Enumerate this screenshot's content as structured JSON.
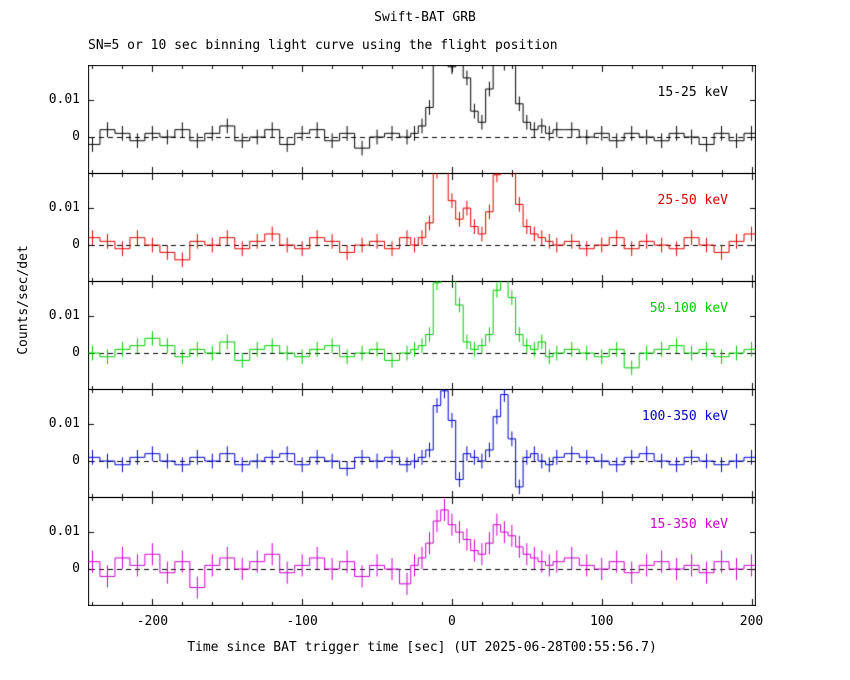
{
  "chart_data": {
    "type": "line",
    "style": "step-histogram-with-error-bars",
    "title": "Swift-BAT GRB",
    "subtitle": "SN=5 or 10 sec binning light curve using the flight position",
    "xlabel": "Time since BAT trigger time [sec] (UT 2025-06-28T00:55:56.7)",
    "ylabel": "Counts/sec/det",
    "xlim": [
      -243,
      203
    ],
    "ylim": [
      -0.01,
      0.0195
    ],
    "xticks": [
      -200,
      -100,
      0,
      100,
      200
    ],
    "xtick_labels": [
      "-200",
      "-100",
      "0",
      "100",
      "200"
    ],
    "xtick_minor_step": 20,
    "yticks": [
      0.01,
      0
    ],
    "ytick_labels": [
      "0.01",
      "0"
    ],
    "zero_line": "dashed",
    "grid": false,
    "legend_position": "inside-right-per-panel",
    "x": [
      -240,
      -230,
      -220,
      -210,
      -200,
      -190,
      -180,
      -170,
      -160,
      -150,
      -140,
      -130,
      -120,
      -110,
      -100,
      -90,
      -80,
      -70,
      -60,
      -50,
      -40,
      -30,
      -25,
      -20,
      -15,
      -10,
      -5,
      0,
      5,
      10,
      15,
      20,
      25,
      30,
      35,
      40,
      45,
      50,
      55,
      60,
      65,
      70,
      80,
      90,
      100,
      110,
      120,
      130,
      140,
      150,
      160,
      170,
      180,
      190,
      200
    ],
    "series": [
      {
        "label": "15-25 keV",
        "color": "#000000",
        "err": 0.002,
        "values": [
          -0.002,
          0.002,
          0.001,
          -0.001,
          0.001,
          0.0,
          0.002,
          -0.001,
          0.001,
          0.003,
          -0.001,
          0.0,
          0.002,
          -0.002,
          0.001,
          0.002,
          -0.001,
          0.001,
          -0.003,
          0.0,
          0.001,
          0.0,
          0.001,
          0.003,
          0.008,
          0.022,
          0.025,
          0.019,
          0.023,
          0.016,
          0.007,
          0.004,
          0.013,
          0.024,
          0.02,
          0.022,
          0.009,
          0.004,
          0.002,
          0.003,
          0.001,
          0.002,
          0.002,
          0.0,
          0.001,
          -0.001,
          0.001,
          0.0,
          -0.001,
          0.001,
          0.0,
          -0.002,
          0.001,
          -0.001,
          0.001
        ]
      },
      {
        "label": "25-50 keV",
        "color": "#dd0000",
        "err": 0.002,
        "values": [
          0.002,
          0.001,
          -0.001,
          0.002,
          0.0,
          -0.002,
          -0.004,
          0.001,
          0.0,
          0.002,
          -0.001,
          0.001,
          0.003,
          0.0,
          -0.001,
          0.002,
          0.001,
          -0.002,
          0.0,
          0.001,
          -0.001,
          0.002,
          0.0,
          0.002,
          0.006,
          0.02,
          0.024,
          0.012,
          0.007,
          0.01,
          0.005,
          0.003,
          0.009,
          0.019,
          0.025,
          0.021,
          0.011,
          0.005,
          0.003,
          0.002,
          0.001,
          0.0,
          0.001,
          -0.001,
          0.0,
          0.002,
          -0.001,
          0.001,
          0.0,
          -0.001,
          0.002,
          0.0,
          -0.002,
          0.001,
          0.003
        ]
      },
      {
        "label": "50-100 keV",
        "color": "#00cc00",
        "err": 0.002,
        "values": [
          0.0,
          -0.001,
          0.001,
          0.002,
          0.004,
          0.002,
          -0.001,
          0.001,
          0.0,
          0.003,
          -0.002,
          0.001,
          0.002,
          0.0,
          -0.001,
          0.001,
          0.002,
          -0.001,
          0.0,
          0.001,
          -0.002,
          0.0,
          0.001,
          0.002,
          0.005,
          0.019,
          0.024,
          0.021,
          0.013,
          0.003,
          0.001,
          0.002,
          0.005,
          0.017,
          0.023,
          0.015,
          0.005,
          0.002,
          0.001,
          0.003,
          -0.001,
          0.0,
          0.001,
          0.0,
          -0.001,
          0.001,
          -0.004,
          0.0,
          0.001,
          0.002,
          0.0,
          0.001,
          -0.001,
          0.0,
          0.001
        ]
      },
      {
        "label": "100-350 keV",
        "color": "#0000cc",
        "err": 0.002,
        "values": [
          0.001,
          0.0,
          -0.001,
          0.001,
          0.002,
          0.0,
          -0.001,
          0.001,
          0.0,
          0.002,
          -0.001,
          0.0,
          0.001,
          0.002,
          -0.001,
          0.001,
          0.0,
          -0.002,
          0.001,
          0.0,
          0.001,
          -0.001,
          0.0,
          0.001,
          0.003,
          0.015,
          0.019,
          0.011,
          -0.005,
          0.002,
          0.001,
          0.0,
          0.003,
          0.012,
          0.018,
          0.006,
          -0.007,
          0.001,
          0.002,
          0.0,
          -0.001,
          0.001,
          0.002,
          0.001,
          0.0,
          -0.001,
          0.001,
          0.002,
          0.0,
          -0.001,
          0.001,
          0.0,
          -0.001,
          0.0,
          0.001
        ]
      },
      {
        "label": "15-350 keV",
        "color": "#cc00cc",
        "err": 0.003,
        "values": [
          0.002,
          -0.002,
          0.003,
          0.001,
          0.004,
          -0.001,
          0.002,
          -0.005,
          0.001,
          0.003,
          0.0,
          0.002,
          0.004,
          -0.001,
          0.001,
          0.003,
          0.0,
          0.002,
          -0.002,
          0.001,
          0.0,
          -0.004,
          0.001,
          0.003,
          0.007,
          0.013,
          0.016,
          0.012,
          0.01,
          0.008,
          0.005,
          0.004,
          0.007,
          0.012,
          0.01,
          0.009,
          0.006,
          0.004,
          0.003,
          0.002,
          0.001,
          0.002,
          0.003,
          0.001,
          0.0,
          0.002,
          -0.001,
          0.001,
          0.002,
          0.0,
          0.001,
          -0.001,
          0.002,
          0.0,
          0.001
        ]
      }
    ]
  }
}
